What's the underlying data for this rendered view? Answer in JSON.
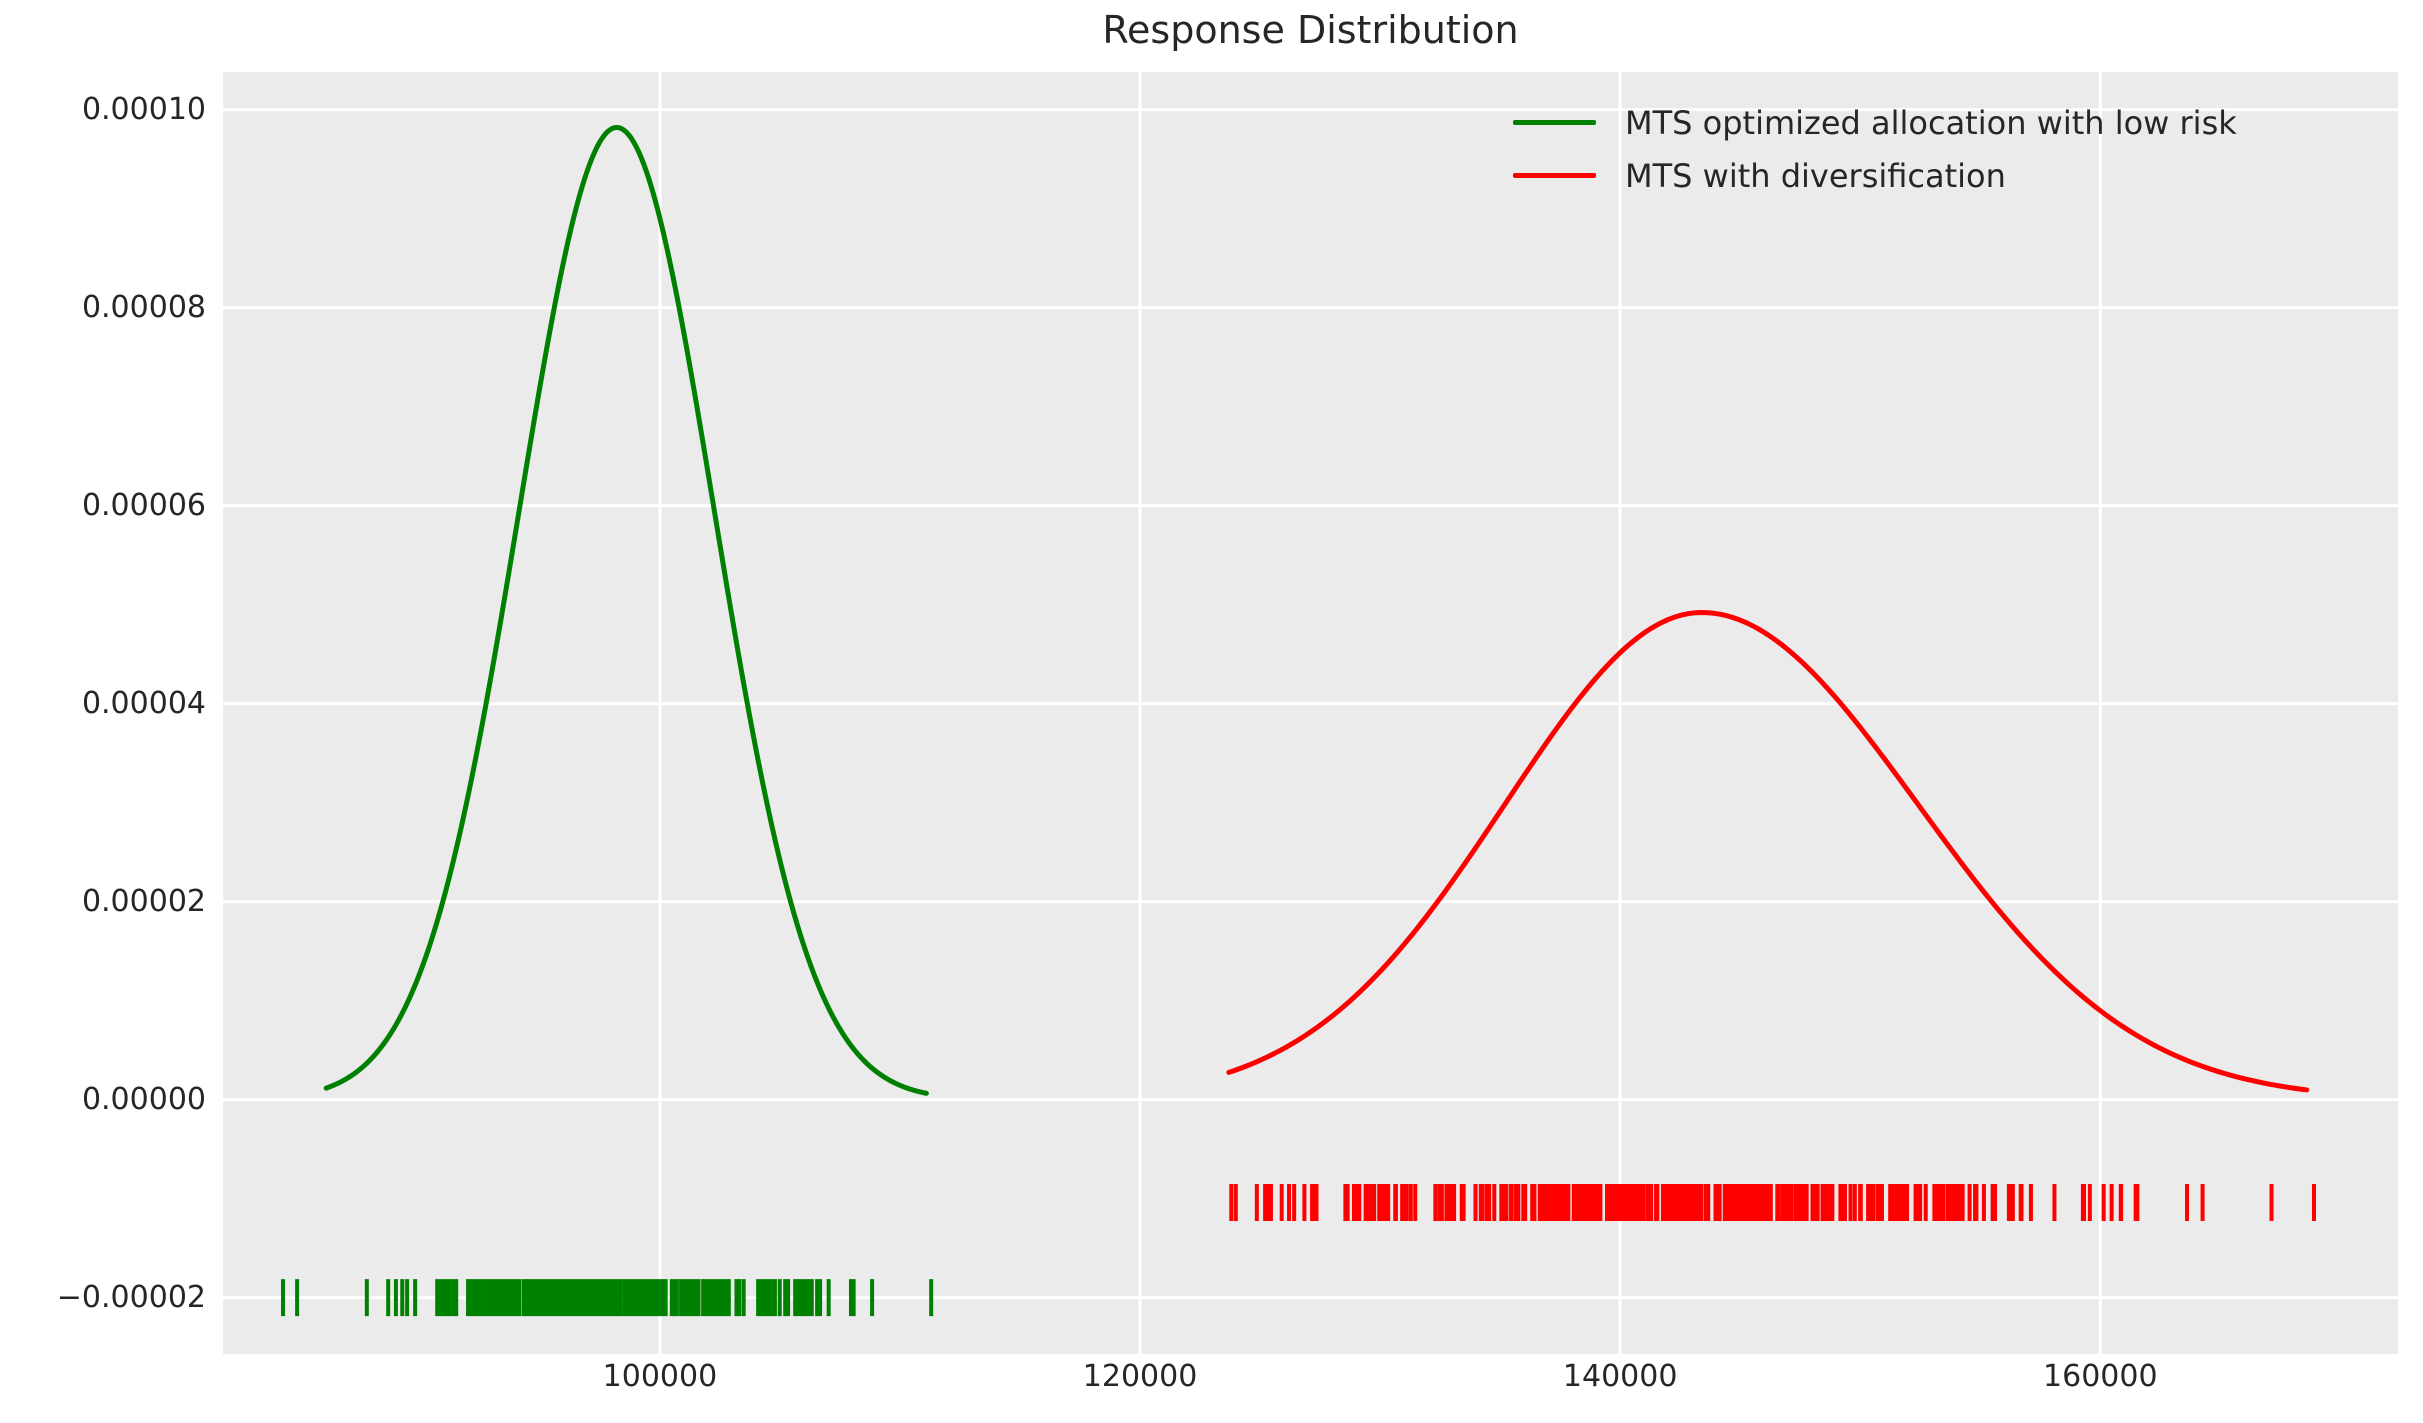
{
  "chart_data": {
    "type": "line",
    "subtype": "kde_distribution_with_rug",
    "title": "Response Distribution",
    "xlabel": "",
    "ylabel": "",
    "grid": true,
    "plot_background": "#ebebeb",
    "grid_color": "#ffffff",
    "text_color": "#262626",
    "legend_position": "upper right",
    "xlim": [
      81800,
      172400
    ],
    "ylim": [
      -2.57e-05,
      0.0001038
    ],
    "x_ticks": [
      100000,
      120000,
      140000,
      160000
    ],
    "x_tick_labels": [
      "100000",
      "120000",
      "140000",
      "160000"
    ],
    "y_ticks": [
      0.0001,
      8e-05,
      6e-05,
      4e-05,
      2e-05,
      0,
      -2e-05
    ],
    "y_tick_labels": [
      "0.00010",
      "0.00008",
      "0.00006",
      "0.00004",
      "0.00002",
      "0.00000",
      "−0.00002"
    ],
    "series": [
      {
        "name": "MTS optimized allocation with low risk",
        "color": "#008000",
        "line_width": 5,
        "curve": {
          "shape": "gaussian",
          "mean": 98200,
          "sigma_left": 4060,
          "sigma_right": 4060,
          "peak_density": 9.82e-05,
          "x_range": [
            86100,
            111100
          ]
        },
        "rug": {
          "y_center": -2e-05,
          "min": 84300,
          "max": 111300,
          "n": 300,
          "seed": 42
        }
      },
      {
        "name": "MTS with diversification",
        "color": "#ff0000",
        "line_width": 5,
        "curve": {
          "shape": "gaussian",
          "mean": 143400,
          "sigma_left": 8200,
          "sigma_right": 9000,
          "peak_density": 4.92e-05,
          "x_range": [
            123700,
            168600
          ]
        },
        "rug": {
          "y_center": -1.04e-05,
          "min": 123800,
          "max": 168900,
          "n": 350,
          "seed": 7
        }
      }
    ]
  }
}
